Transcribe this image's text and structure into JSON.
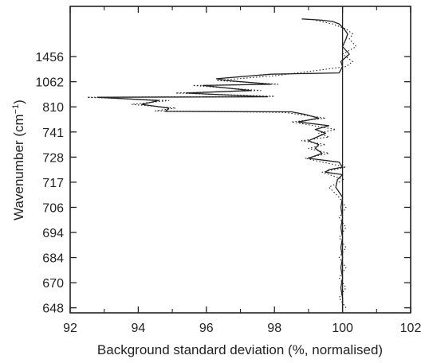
{
  "chart_data": {
    "type": "line",
    "title": "",
    "xlabel": "Background standard deviation (%, normalised)",
    "ylabel": "Wavenumber (cm⁻¹)",
    "ylabel_main": "Wavenumber (cm",
    "ylabel_sup": "−1",
    "ylabel_close": ")",
    "xlim": [
      92,
      102
    ],
    "xticks": [
      92,
      94,
      96,
      98,
      100,
      102
    ],
    "ylim": [
      0,
      12.2
    ],
    "y_ticks": [
      {
        "pos": 0.2,
        "label": "648"
      },
      {
        "pos": 1.2,
        "label": "670"
      },
      {
        "pos": 2.2,
        "label": "684"
      },
      {
        "pos": 3.2,
        "label": "694"
      },
      {
        "pos": 4.2,
        "label": "706"
      },
      {
        "pos": 5.2,
        "label": "717"
      },
      {
        "pos": 6.2,
        "label": "728"
      },
      {
        "pos": 7.2,
        "label": "741"
      },
      {
        "pos": 8.2,
        "label": "810"
      },
      {
        "pos": 9.2,
        "label": "1062"
      },
      {
        "pos": 10.2,
        "label": "1456"
      }
    ],
    "reference_line_x": 100,
    "grid": false,
    "series": [
      {
        "style": "solid",
        "color": "#222222",
        "points": [
          [
            100.0,
            0.2
          ],
          [
            100.0,
            0.6
          ],
          [
            99.95,
            1.0
          ],
          [
            100.0,
            1.4
          ],
          [
            99.95,
            1.8
          ],
          [
            100.0,
            2.2
          ],
          [
            99.95,
            2.6
          ],
          [
            100.0,
            3.0
          ],
          [
            99.95,
            3.4
          ],
          [
            100.0,
            3.8
          ],
          [
            99.95,
            4.2
          ],
          [
            100.0,
            4.6
          ],
          [
            99.8,
            5.0
          ],
          [
            99.85,
            5.3
          ],
          [
            100.0,
            5.5
          ],
          [
            99.5,
            5.6
          ],
          [
            99.6,
            5.7
          ],
          [
            100.0,
            5.8
          ],
          [
            99.9,
            6.0
          ],
          [
            99.0,
            6.15
          ],
          [
            99.4,
            6.35
          ],
          [
            99.2,
            6.55
          ],
          [
            99.3,
            6.7
          ],
          [
            99.0,
            6.85
          ],
          [
            99.25,
            7.0
          ],
          [
            99.5,
            7.15
          ],
          [
            99.2,
            7.3
          ],
          [
            99.6,
            7.45
          ],
          [
            98.7,
            7.6
          ],
          [
            99.3,
            7.75
          ],
          [
            98.9,
            7.9
          ],
          [
            98.5,
            8.0
          ],
          [
            94.8,
            8.02
          ],
          [
            94.9,
            8.15
          ],
          [
            94.1,
            8.3
          ],
          [
            94.6,
            8.45
          ],
          [
            92.8,
            8.58
          ],
          [
            97.8,
            8.6
          ],
          [
            95.4,
            8.75
          ],
          [
            97.3,
            8.85
          ],
          [
            95.9,
            9.05
          ],
          [
            97.9,
            9.1
          ],
          [
            96.6,
            9.25
          ],
          [
            96.3,
            9.32
          ],
          [
            97.9,
            9.5
          ],
          [
            99.9,
            9.55
          ],
          [
            100.0,
            9.8
          ],
          [
            99.95,
            10.0
          ],
          [
            100.2,
            10.3
          ],
          [
            100.0,
            10.6
          ],
          [
            100.1,
            10.9
          ],
          [
            100.15,
            11.1
          ],
          [
            100.05,
            11.3
          ],
          [
            99.9,
            11.5
          ],
          [
            99.7,
            11.6
          ],
          [
            99.4,
            11.65
          ],
          [
            98.8,
            11.7
          ]
        ]
      },
      {
        "style": "dotted",
        "color": "#222222",
        "points": [
          [
            100.1,
            0.2
          ],
          [
            99.9,
            0.6
          ],
          [
            100.1,
            1.0
          ],
          [
            99.9,
            1.4
          ],
          [
            100.1,
            1.8
          ],
          [
            99.9,
            2.2
          ],
          [
            100.1,
            2.6
          ],
          [
            99.9,
            3.0
          ],
          [
            100.1,
            3.4
          ],
          [
            99.9,
            3.8
          ],
          [
            100.1,
            4.2
          ],
          [
            99.9,
            4.6
          ],
          [
            99.6,
            5.0
          ],
          [
            100.05,
            5.3
          ],
          [
            99.4,
            5.6
          ],
          [
            100.1,
            5.8
          ],
          [
            98.9,
            6.15
          ],
          [
            99.6,
            6.35
          ],
          [
            99.0,
            6.55
          ],
          [
            99.5,
            6.7
          ],
          [
            98.8,
            6.85
          ],
          [
            99.6,
            7.0
          ],
          [
            99.3,
            7.15
          ],
          [
            99.8,
            7.3
          ],
          [
            98.5,
            7.6
          ],
          [
            99.5,
            7.75
          ],
          [
            98.7,
            7.9
          ],
          [
            98.3,
            7.98
          ],
          [
            94.5,
            8.04
          ],
          [
            95.1,
            8.15
          ],
          [
            93.8,
            8.3
          ],
          [
            94.9,
            8.45
          ],
          [
            92.5,
            8.58
          ],
          [
            98.0,
            8.62
          ],
          [
            95.1,
            8.75
          ],
          [
            97.6,
            8.85
          ],
          [
            95.6,
            9.05
          ],
          [
            98.1,
            9.1
          ],
          [
            96.3,
            9.25
          ],
          [
            98.1,
            9.45
          ],
          [
            100.1,
            9.8
          ],
          [
            100.3,
            10.0
          ],
          [
            100.0,
            10.3
          ],
          [
            100.4,
            10.6
          ],
          [
            100.2,
            10.9
          ],
          [
            100.3,
            11.1
          ],
          [
            100.1,
            11.3
          ],
          [
            99.7,
            11.5
          ],
          [
            99.2,
            11.65
          ]
        ]
      }
    ]
  }
}
